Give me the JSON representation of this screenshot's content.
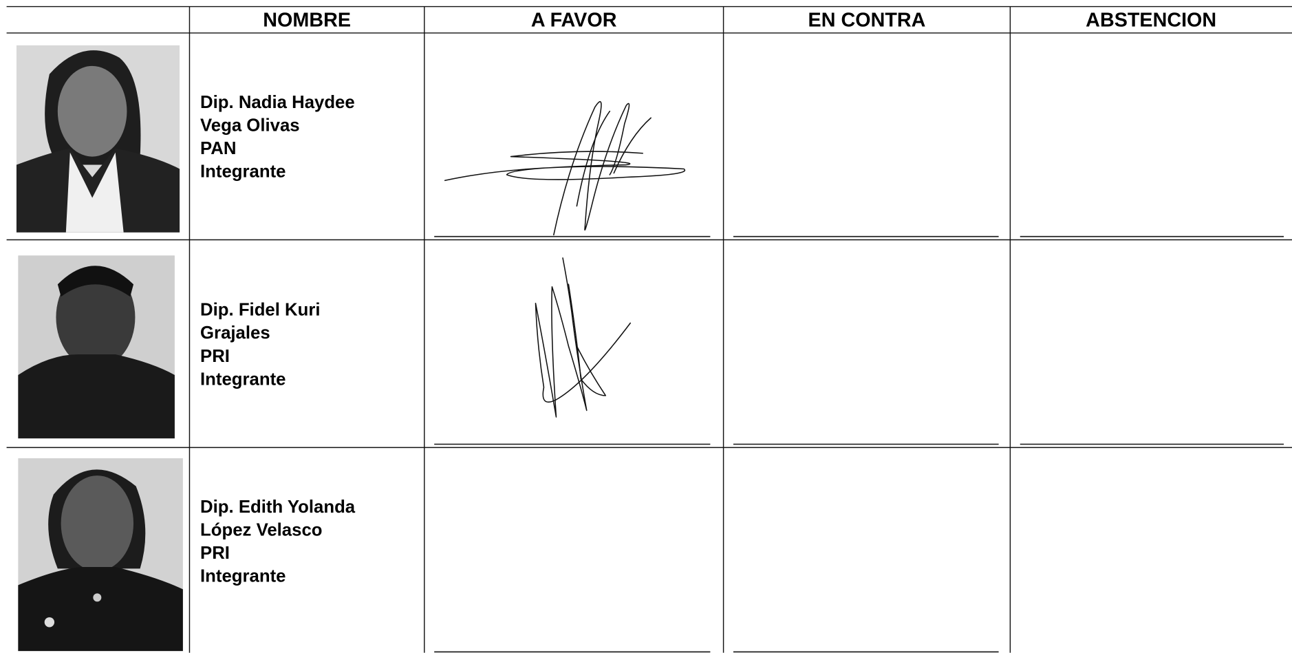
{
  "table": {
    "headers": [
      "NOMBRE",
      "A FAVOR",
      "EN CONTRA",
      "ABSTENCION"
    ],
    "rows": [
      {
        "name_lines": [
          "Dip. Nadia Haydee",
          "Vega Olivas",
          "PAN",
          "Integrante"
        ]
      },
      {
        "name_lines": [
          "Dip. Fidel Kuri",
          "Grajales",
          "PRI",
          "Integrante"
        ]
      },
      {
        "name_lines": [
          "Dip. Edith Yolanda",
          "López Velasco",
          "PRI",
          "Integrante"
        ]
      }
    ]
  }
}
